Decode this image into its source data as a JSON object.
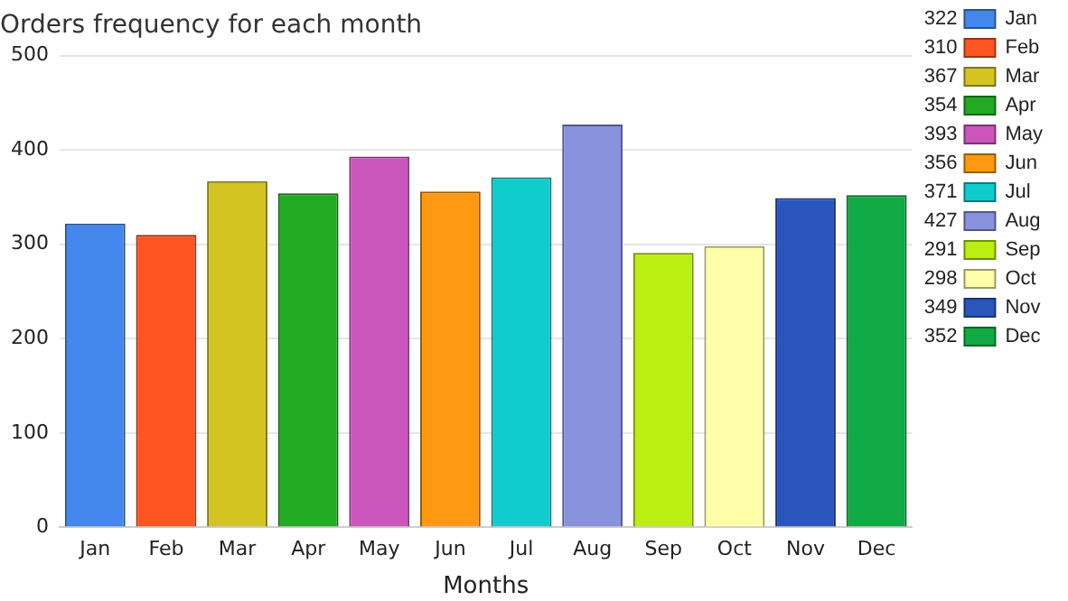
{
  "chart_data": {
    "type": "bar",
    "title": "Orders frequency for each month",
    "xlabel": "Months",
    "categories": [
      "Jan",
      "Feb",
      "Mar",
      "Apr",
      "May",
      "Jun",
      "Jul",
      "Aug",
      "Sep",
      "Oct",
      "Nov",
      "Dec"
    ],
    "series": [
      {
        "name": "Jan",
        "color": "#4488ee",
        "values": [
          322,
          null,
          null,
          null,
          null,
          null,
          null,
          null,
          null,
          null,
          null,
          null
        ]
      },
      {
        "name": "Feb",
        "color": "#ff5522",
        "values": [
          null,
          310,
          null,
          null,
          null,
          null,
          null,
          null,
          null,
          null,
          null,
          null
        ]
      },
      {
        "name": "Mar",
        "color": "#d4c422",
        "values": [
          null,
          null,
          367,
          null,
          null,
          null,
          null,
          null,
          null,
          null,
          null,
          null
        ]
      },
      {
        "name": "Apr",
        "color": "#22aa22",
        "values": [
          null,
          null,
          null,
          354,
          null,
          null,
          null,
          null,
          null,
          null,
          null,
          null
        ]
      },
      {
        "name": "May",
        "color": "#cc55bb",
        "values": [
          null,
          null,
          null,
          null,
          393,
          null,
          null,
          null,
          null,
          null,
          null,
          null
        ]
      },
      {
        "name": "Jun",
        "color": "#ff9911",
        "values": [
          null,
          null,
          null,
          null,
          null,
          356,
          null,
          null,
          null,
          null,
          null,
          null
        ]
      },
      {
        "name": "Jul",
        "color": "#11cccc",
        "values": [
          null,
          null,
          null,
          null,
          null,
          null,
          371,
          null,
          null,
          null,
          null,
          null
        ]
      },
      {
        "name": "Aug",
        "color": "#8892dd",
        "values": [
          null,
          null,
          null,
          null,
          null,
          null,
          null,
          427,
          null,
          null,
          null,
          null
        ]
      },
      {
        "name": "Sep",
        "color": "#bbee11",
        "values": [
          null,
          null,
          null,
          null,
          null,
          null,
          null,
          null,
          291,
          null,
          null,
          null
        ]
      },
      {
        "name": "Oct",
        "color": "#ffffaa",
        "values": [
          null,
          null,
          null,
          null,
          null,
          null,
          null,
          null,
          null,
          298,
          null,
          null
        ]
      },
      {
        "name": "Nov",
        "color": "#2a55bb",
        "values": [
          null,
          null,
          null,
          null,
          null,
          null,
          null,
          null,
          null,
          null,
          349,
          null
        ]
      },
      {
        "name": "Dec",
        "color": "#11aa44",
        "values": [
          null,
          null,
          null,
          null,
          null,
          null,
          null,
          null,
          null,
          null,
          null,
          352
        ]
      }
    ],
    "ylim": [
      0,
      500
    ],
    "yticks": [
      0,
      100,
      200,
      300,
      400,
      500
    ],
    "grid": "y",
    "legend": "right",
    "annotations": [
      "322",
      "310",
      "367",
      "354",
      "393",
      "356",
      "371",
      "427",
      "291",
      "298",
      "349",
      "352"
    ]
  }
}
